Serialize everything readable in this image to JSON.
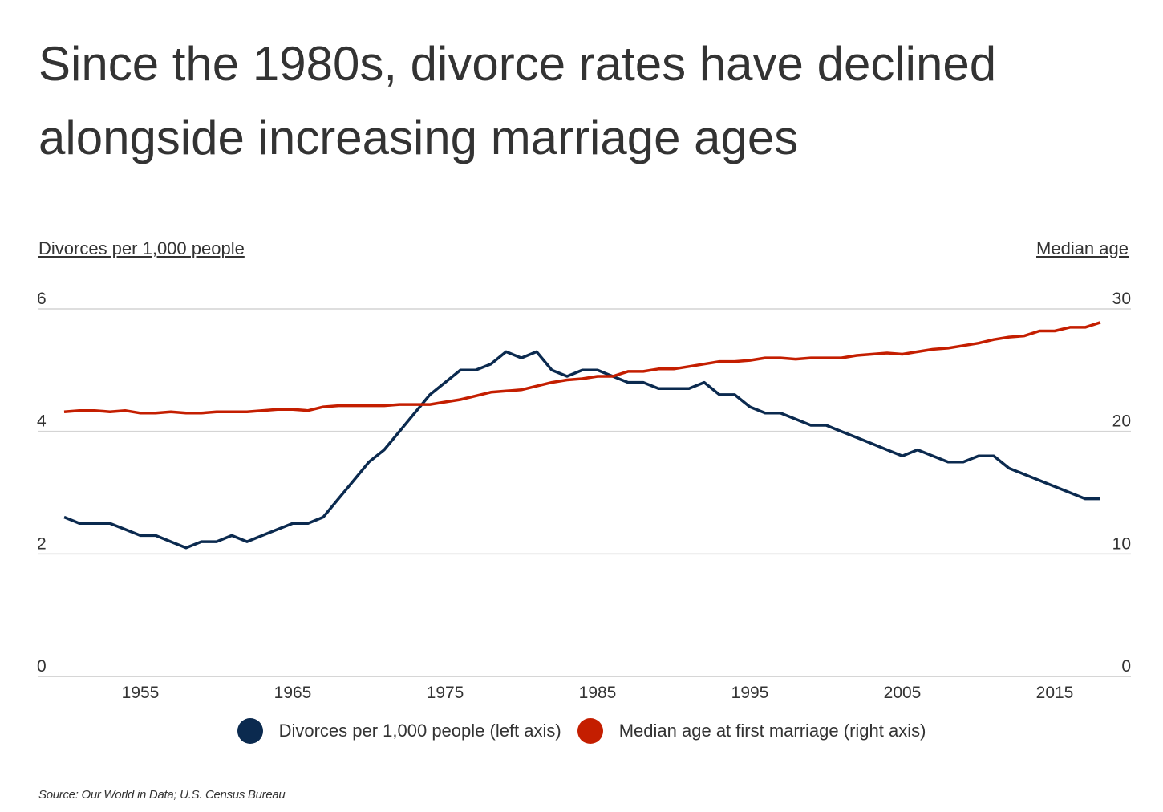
{
  "title": "Since the 1980s, divorce rates have declined alongside increasing marriage ages",
  "left_axis_title": "Divorces per 1,000 people",
  "right_axis_title": "Median age",
  "source": "Source:  Our World in Data; U.S. Census Bureau",
  "colors": {
    "divorces": "#0b2a4f",
    "median_age": "#c41e00",
    "grid": "#d4d4d4"
  },
  "chart_data": {
    "type": "line",
    "x": [
      1950,
      1951,
      1952,
      1953,
      1954,
      1955,
      1956,
      1957,
      1958,
      1959,
      1960,
      1961,
      1962,
      1963,
      1964,
      1965,
      1966,
      1967,
      1968,
      1969,
      1970,
      1971,
      1972,
      1973,
      1974,
      1975,
      1976,
      1977,
      1978,
      1979,
      1980,
      1981,
      1982,
      1983,
      1984,
      1985,
      1986,
      1987,
      1988,
      1989,
      1990,
      1991,
      1992,
      1993,
      1994,
      1995,
      1996,
      1997,
      1998,
      1999,
      2000,
      2001,
      2002,
      2003,
      2004,
      2005,
      2006,
      2007,
      2008,
      2009,
      2010,
      2011,
      2012,
      2013,
      2014,
      2015,
      2016,
      2017,
      2018
    ],
    "x_ticks": [
      "1955",
      "1965",
      "1975",
      "1985",
      "1995",
      "2005",
      "2015"
    ],
    "left_axis": {
      "label": "Divorces per 1,000 people",
      "ylim": [
        0,
        6
      ],
      "ticks": [
        "0",
        "2",
        "4",
        "6"
      ]
    },
    "right_axis": {
      "label": "Median age",
      "ylim": [
        0,
        30
      ],
      "ticks": [
        "0",
        "10",
        "20",
        "30"
      ]
    },
    "grid": true,
    "legend_placement": "bottom",
    "series": [
      {
        "name": "Divorces per 1,000 people (left axis)",
        "axis": "left",
        "values": [
          2.6,
          2.5,
          2.5,
          2.5,
          2.4,
          2.3,
          2.3,
          2.2,
          2.1,
          2.2,
          2.2,
          2.3,
          2.2,
          2.3,
          2.4,
          2.5,
          2.5,
          2.6,
          2.9,
          3.2,
          3.5,
          3.7,
          4.0,
          4.3,
          4.6,
          4.8,
          5.0,
          5.0,
          5.1,
          5.3,
          5.2,
          5.3,
          5.0,
          4.9,
          5.0,
          5.0,
          4.9,
          4.8,
          4.8,
          4.7,
          4.7,
          4.7,
          4.8,
          4.6,
          4.6,
          4.4,
          4.3,
          4.3,
          4.2,
          4.1,
          4.1,
          4.0,
          3.9,
          3.8,
          3.7,
          3.6,
          3.7,
          3.6,
          3.5,
          3.5,
          3.6,
          3.6,
          3.4,
          3.3,
          3.2,
          3.1,
          3.0,
          2.9,
          2.9
        ]
      },
      {
        "name": "Median age at first marriage (right axis)",
        "axis": "right",
        "values": [
          21.6,
          21.7,
          21.7,
          21.6,
          21.7,
          21.5,
          21.5,
          21.6,
          21.5,
          21.5,
          21.6,
          21.6,
          21.6,
          21.7,
          21.8,
          21.8,
          21.7,
          22.0,
          22.1,
          22.1,
          22.1,
          22.1,
          22.2,
          22.2,
          22.2,
          22.4,
          22.6,
          22.9,
          23.2,
          23.3,
          23.4,
          23.7,
          24.0,
          24.2,
          24.3,
          24.5,
          24.5,
          24.9,
          24.9,
          25.1,
          25.1,
          25.3,
          25.5,
          25.7,
          25.7,
          25.8,
          26.0,
          26.0,
          25.9,
          26.0,
          26.0,
          26.0,
          26.2,
          26.3,
          26.4,
          26.3,
          26.5,
          26.7,
          26.8,
          27.0,
          27.2,
          27.5,
          27.7,
          27.8,
          28.2,
          28.2,
          28.5,
          28.5,
          28.9
        ]
      }
    ]
  }
}
